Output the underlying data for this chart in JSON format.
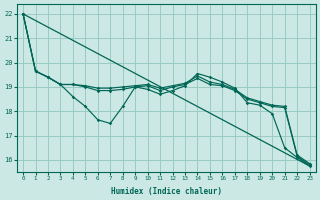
{
  "xlabel": "Humidex (Indice chaleur)",
  "bg_color": "#cce8e4",
  "grid_color": "#99ccc4",
  "line_color": "#006655",
  "xlim": [
    -0.5,
    23.5
  ],
  "ylim": [
    15.5,
    22.4
  ],
  "yticks": [
    16,
    17,
    18,
    19,
    20,
    21,
    22
  ],
  "xticks": [
    0,
    1,
    2,
    3,
    4,
    5,
    6,
    7,
    8,
    9,
    10,
    11,
    12,
    13,
    14,
    15,
    16,
    17,
    18,
    19,
    20,
    21,
    22,
    23
  ],
  "line1": [
    22.0,
    19.65,
    19.4,
    19.1,
    19.1,
    19.0,
    18.85,
    18.85,
    18.9,
    19.0,
    19.05,
    18.85,
    19.0,
    19.1,
    19.35,
    19.1,
    19.05,
    18.85,
    18.5,
    18.35,
    18.2,
    18.15,
    16.15,
    15.8
  ],
  "line2": [
    22.0,
    19.65,
    19.4,
    19.1,
    19.1,
    19.05,
    18.95,
    18.95,
    19.0,
    19.05,
    19.1,
    18.95,
    19.05,
    19.15,
    19.45,
    19.2,
    19.1,
    18.9,
    18.55,
    18.4,
    18.25,
    18.2,
    16.2,
    15.85
  ],
  "line3": [
    22.0,
    19.65,
    19.4,
    19.1,
    18.6,
    18.2,
    17.65,
    17.5,
    18.2,
    19.0,
    18.9,
    18.7,
    18.85,
    19.05,
    19.55,
    19.4,
    19.2,
    18.95,
    18.35,
    18.25,
    17.9,
    16.5,
    16.1,
    15.75
  ],
  "line4_x": [
    0,
    23
  ],
  "line4_y": [
    22.0,
    15.75
  ]
}
